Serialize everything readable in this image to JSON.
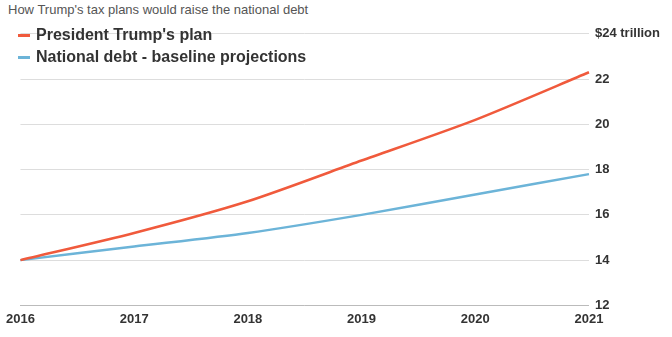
{
  "chart_data": {
    "type": "line",
    "title": "How Trump's tax plans would raise the national debt",
    "categories": [
      "2016",
      "2017",
      "2018",
      "2019",
      "2020",
      "2021"
    ],
    "series": [
      {
        "name": "President Trump's plan",
        "color": "#f05a3c",
        "values": [
          14,
          15.2,
          16.6,
          18.4,
          20.2,
          22.3
        ]
      },
      {
        "name": "National debt - baseline projections",
        "color": "#6cb4d8",
        "values": [
          14,
          14.6,
          15.2,
          16.0,
          16.9,
          17.8
        ]
      }
    ],
    "ylim": [
      12,
      24
    ],
    "yticks": [
      12,
      14,
      16,
      18,
      20,
      22,
      {
        "value": 24,
        "label": "$24 trillion"
      }
    ],
    "grid": true,
    "legend": "top-left"
  }
}
